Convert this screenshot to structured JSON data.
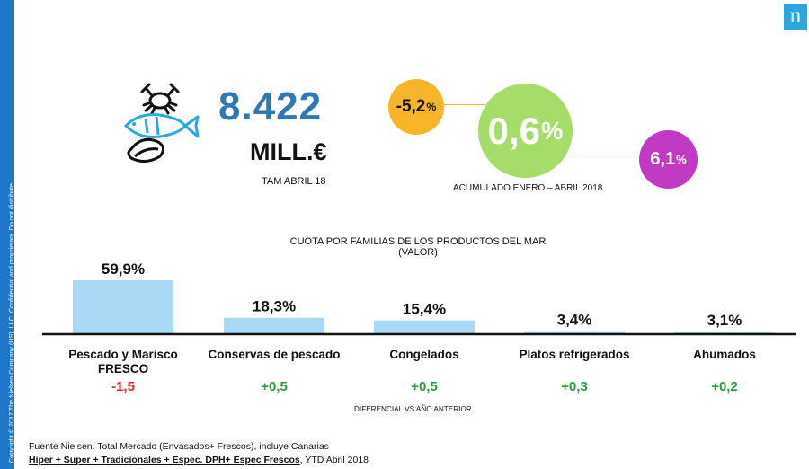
{
  "sidebar": {
    "copyright": "Copyright © 2017 The Nielsen Company (US), LLC. Confidential and proprietary. Do not distribute."
  },
  "logo": {
    "letter": "n",
    "color": "#29a8e0"
  },
  "header": {
    "icon": "seafood-icon",
    "total_value": "8.422",
    "total_unit": "MILL.€",
    "period": "TAM ABRIL 18"
  },
  "bubbles": {
    "left": {
      "value": "-5,2",
      "unit": "%",
      "color": "#f7b62a"
    },
    "center": {
      "value": "0,6",
      "unit": "%",
      "color": "#a6dd6a"
    },
    "right": {
      "value": "6,1",
      "unit": "%",
      "color": "#c13ac4"
    },
    "caption": "ACUMULADO ENERO – ABRIL 2018"
  },
  "chart_data": {
    "type": "bar",
    "title": "CUOTA POR FAMILIAS DE LOS PRODUCTOS DEL MAR (VALOR)",
    "categories": [
      "Pescado y Marisco FRESCO",
      "Conservas de pescado",
      "Congelados",
      "Platos refrigerados",
      "Ahumados"
    ],
    "values": [
      59.9,
      18.3,
      15.4,
      3.4,
      3.1
    ],
    "value_labels": [
      "59,9%",
      "18,3%",
      "15,4%",
      "3,4%",
      "3,1%"
    ],
    "differences": [
      "-1,5",
      "+0,5",
      "+0,5",
      "+0,3",
      "+0,2"
    ],
    "difference_label": "DIFERENCIAL VS AÑO ANTERIOR",
    "bar_color": "#a9d9f5",
    "neg_color": "#d92a35",
    "pos_color": "#2f9a3c"
  },
  "footer": {
    "source": "Fuente Nielsen. Total Mercado (Envasados+ Frescos), incluye Canarias",
    "channels": "Hiper + Super + Tradicionales + Espec. DPH+ Espec Frescos",
    "period": ", YTD Abril 2018"
  }
}
